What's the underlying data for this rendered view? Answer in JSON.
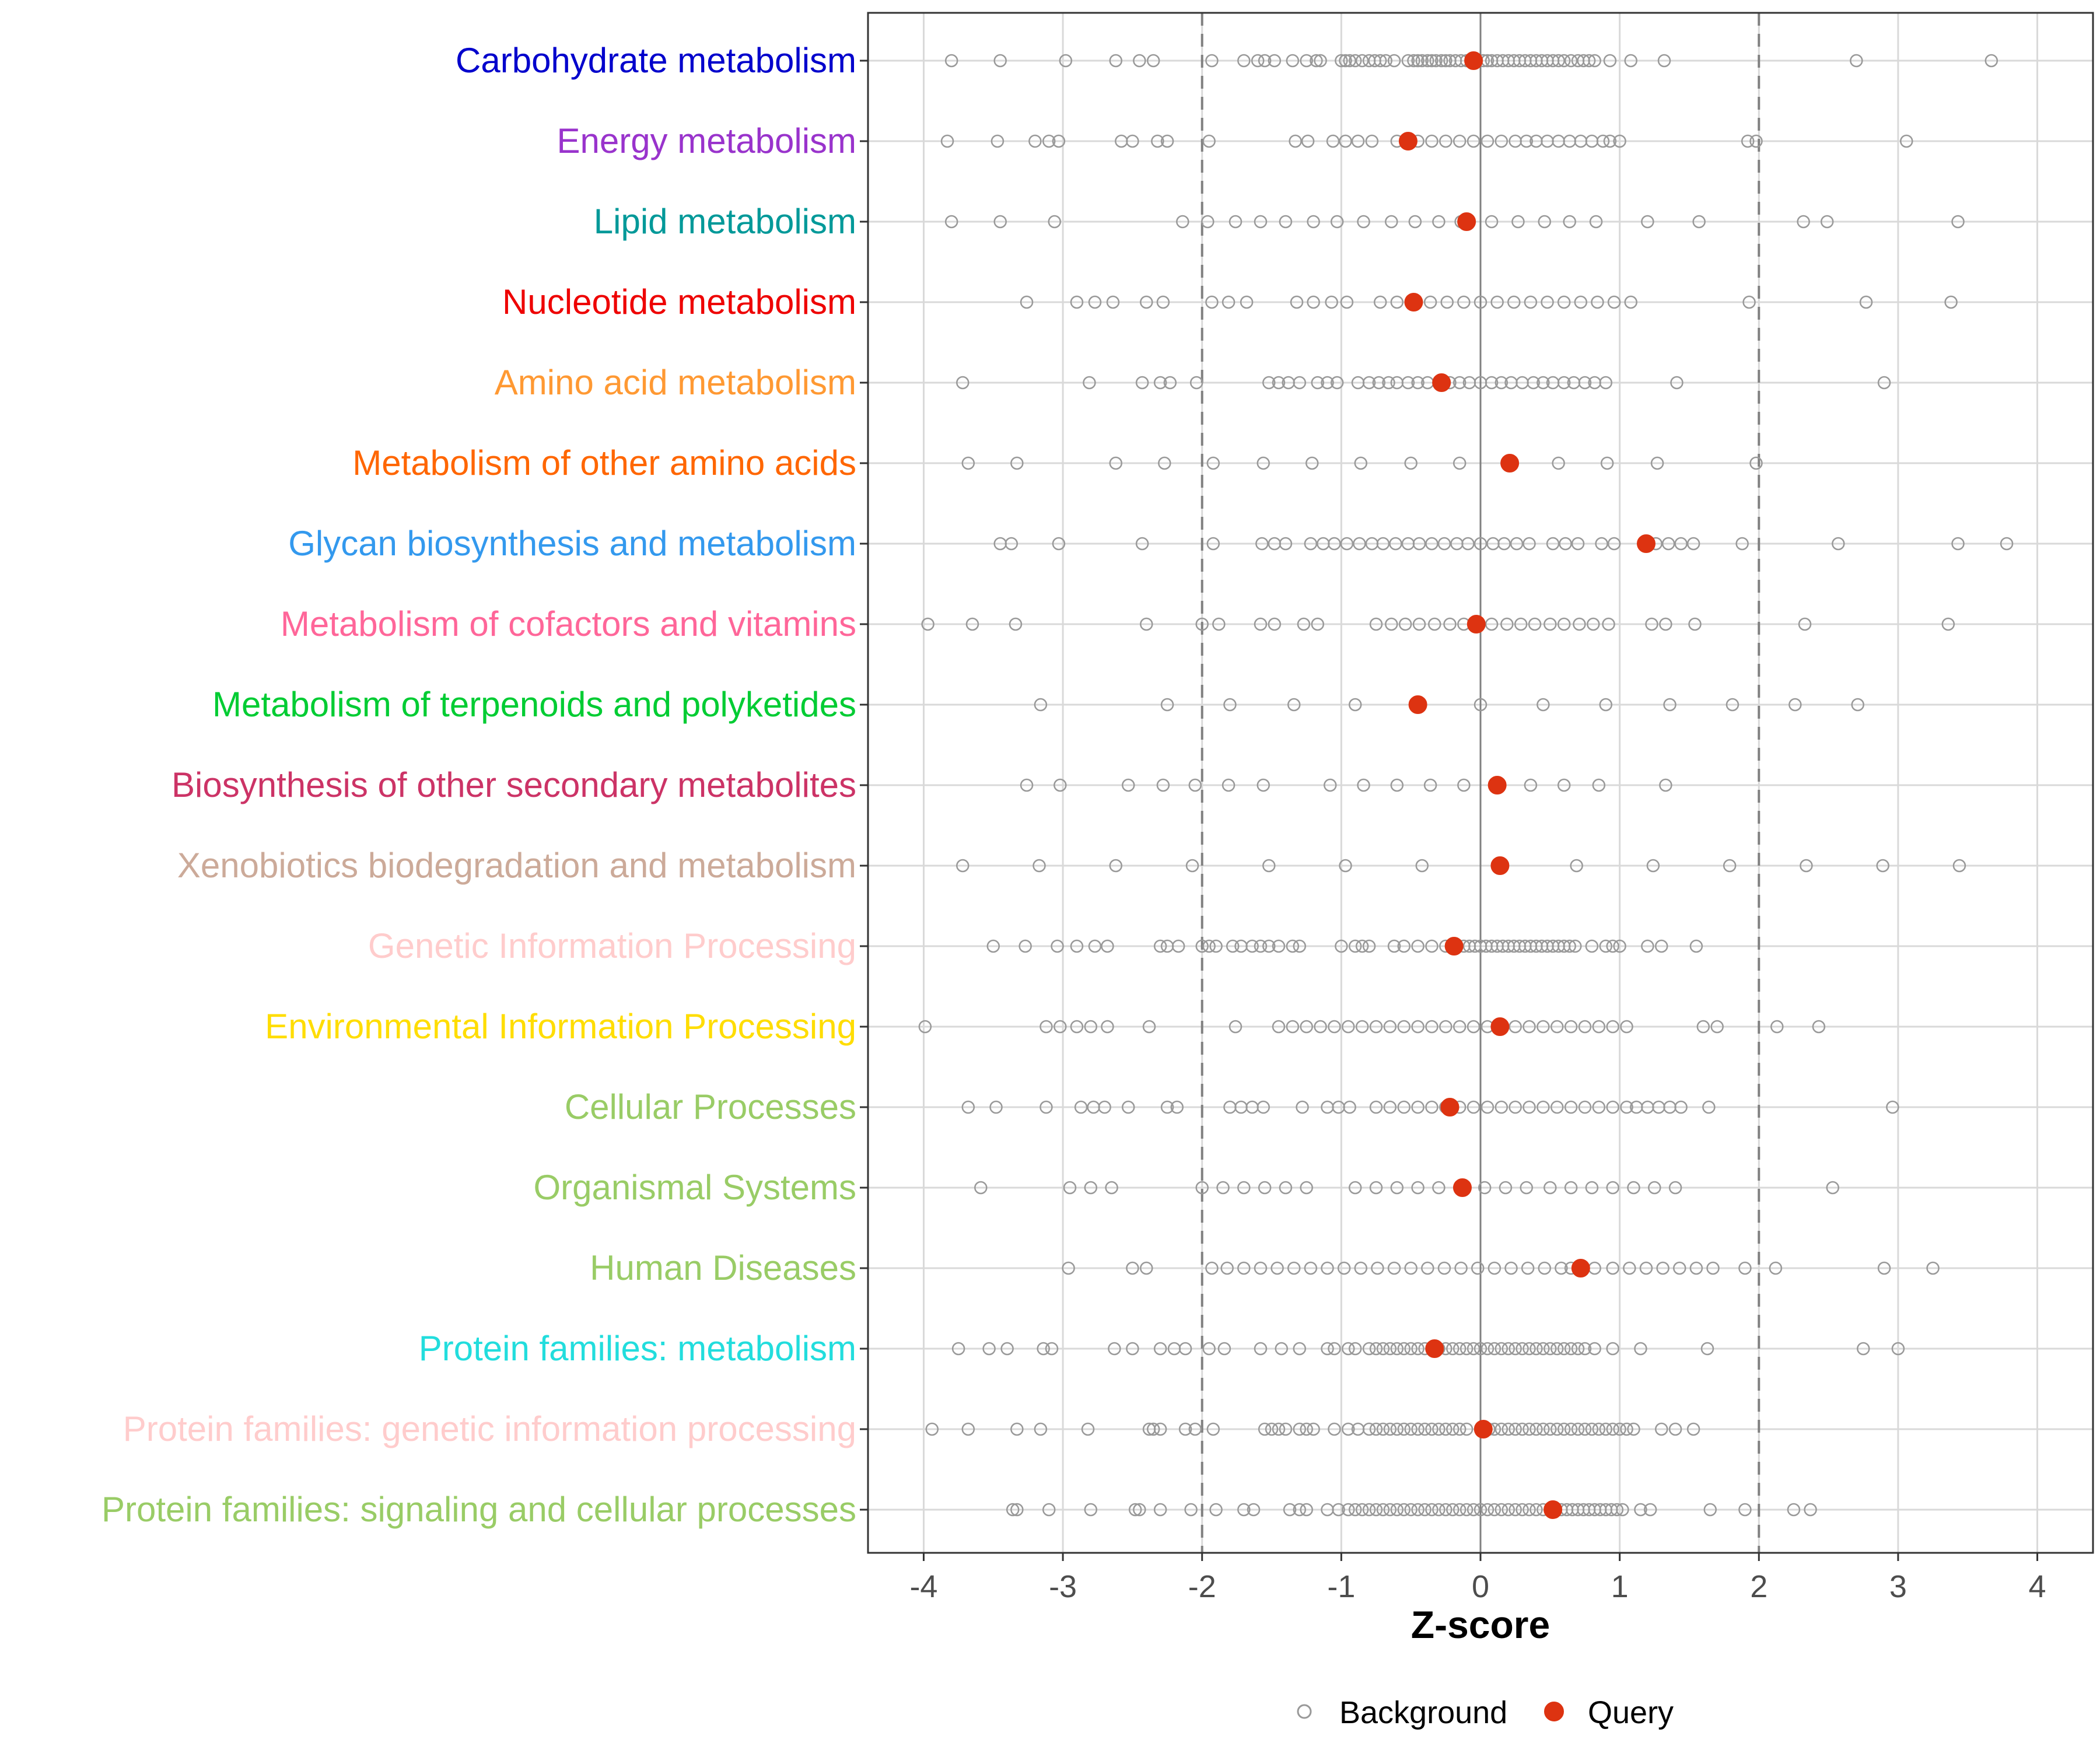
{
  "chart_data": {
    "type": "scatter",
    "xlabel": "Z-score",
    "xlim": [
      -4.4,
      4.4
    ],
    "xticks": [
      -4,
      -3,
      -2,
      -1,
      0,
      1,
      2,
      3,
      4
    ],
    "reference_lines": {
      "solid": [
        0
      ],
      "dashed": [
        -2,
        2
      ]
    },
    "legend": {
      "position": "bottom",
      "items": [
        {
          "label": "Background",
          "marker": "open-circle",
          "color": "#999999"
        },
        {
          "label": "Query",
          "marker": "filled-circle",
          "color": "#dd3311"
        }
      ]
    },
    "colors": {
      "background": "#999999",
      "query": "#dd3311",
      "grid": "#d9d9d9",
      "zero_line": "#808080",
      "dashed_line": "#808080"
    },
    "categories": [
      {
        "name": "Carbohydrate metabolism",
        "color": "#0000cc",
        "query": -0.05,
        "background": [
          -3.8,
          -3.45,
          -2.98,
          -2.62,
          -2.45,
          -2.35,
          -1.93,
          -1.7,
          -1.6,
          -1.55,
          -1.48,
          -1.35,
          -1.25,
          -1.18,
          -1.15,
          -1.0,
          -0.97,
          -0.94,
          -0.9,
          -0.85,
          -0.8,
          -0.76,
          -0.72,
          -0.68,
          -0.62,
          -0.52,
          -0.48,
          -0.45,
          -0.42,
          -0.38,
          -0.35,
          -0.32,
          -0.28,
          -0.25,
          -0.22,
          -0.18,
          -0.14,
          -0.1,
          -0.06,
          0.02,
          0.05,
          0.08,
          0.12,
          0.16,
          0.2,
          0.24,
          0.28,
          0.32,
          0.36,
          0.4,
          0.44,
          0.48,
          0.52,
          0.56,
          0.6,
          0.65,
          0.7,
          0.74,
          0.78,
          0.82,
          0.93,
          1.08,
          1.32,
          2.7,
          3.67
        ]
      },
      {
        "name": "Energy metabolism",
        "color": "#9933cc",
        "query": -0.52,
        "background": [
          -3.83,
          -3.47,
          -3.2,
          -3.1,
          -3.03,
          -2.58,
          -2.5,
          -2.32,
          -2.25,
          -1.95,
          -1.33,
          -1.24,
          -1.06,
          -0.97,
          -0.88,
          -0.78,
          -0.6,
          -0.45,
          -0.35,
          -0.25,
          -0.15,
          -0.05,
          0.05,
          0.15,
          0.25,
          0.33,
          0.4,
          0.48,
          0.56,
          0.64,
          0.72,
          0.8,
          0.88,
          0.93,
          1.0,
          1.92,
          1.98,
          3.06
        ]
      },
      {
        "name": "Lipid metabolism",
        "color": "#009999",
        "query": -0.1,
        "background": [
          -3.8,
          -3.45,
          -3.06,
          -2.14,
          -1.96,
          -1.76,
          -1.58,
          -1.4,
          -1.2,
          -1.03,
          -0.84,
          -0.64,
          -0.47,
          -0.3,
          -0.14,
          0.08,
          0.27,
          0.46,
          0.64,
          0.83,
          1.2,
          1.57,
          2.32,
          2.49,
          3.43
        ]
      },
      {
        "name": "Nucleotide metabolism",
        "color": "#ee0000",
        "query": -0.48,
        "background": [
          -3.26,
          -2.9,
          -2.77,
          -2.64,
          -2.4,
          -2.28,
          -1.93,
          -1.81,
          -1.68,
          -1.32,
          -1.2,
          -1.07,
          -0.96,
          -0.72,
          -0.6,
          -0.36,
          -0.24,
          -0.12,
          0.0,
          0.12,
          0.24,
          0.36,
          0.48,
          0.6,
          0.72,
          0.84,
          0.96,
          1.08,
          1.93,
          2.77,
          3.38
        ]
      },
      {
        "name": "Amino acid metabolism",
        "color": "#ff9933",
        "query": -0.28,
        "background": [
          -3.72,
          -2.81,
          -2.43,
          -2.3,
          -2.23,
          -2.04,
          -1.52,
          -1.45,
          -1.38,
          -1.3,
          -1.17,
          -1.1,
          -1.03,
          -0.88,
          -0.8,
          -0.73,
          -0.66,
          -0.6,
          -0.52,
          -0.45,
          -0.38,
          -0.3,
          -0.22,
          -0.15,
          -0.08,
          0.0,
          0.08,
          0.15,
          0.22,
          0.3,
          0.38,
          0.45,
          0.52,
          0.6,
          0.67,
          0.75,
          0.82,
          0.9,
          1.41,
          2.9
        ]
      },
      {
        "name": "Metabolism of other amino acids",
        "color": "#ff6600",
        "query": 0.21,
        "background": [
          -3.68,
          -3.33,
          -2.62,
          -2.27,
          -1.92,
          -1.56,
          -1.21,
          -0.86,
          -0.5,
          -0.15,
          0.56,
          0.91,
          1.27,
          1.98
        ]
      },
      {
        "name": "Glycan biosynthesis and metabolism",
        "color": "#3399ee",
        "query": 1.19,
        "background": [
          -3.45,
          -3.37,
          -3.03,
          -2.43,
          -1.92,
          -1.57,
          -1.48,
          -1.4,
          -1.22,
          -1.13,
          -1.05,
          -0.96,
          -0.87,
          -0.78,
          -0.7,
          -0.61,
          -0.52,
          -0.44,
          -0.35,
          -0.26,
          -0.17,
          -0.09,
          0.0,
          0.09,
          0.17,
          0.26,
          0.35,
          0.52,
          0.61,
          0.7,
          0.87,
          0.96,
          1.26,
          1.35,
          1.44,
          1.53,
          1.88,
          2.57,
          3.43,
          3.78
        ]
      },
      {
        "name": "Metabolism of cofactors and vitamins",
        "color": "#ff6699",
        "query": -0.03,
        "background": [
          -3.97,
          -3.65,
          -3.34,
          -2.4,
          -2.0,
          -1.88,
          -1.58,
          -1.48,
          -1.27,
          -1.17,
          -0.75,
          -0.64,
          -0.54,
          -0.44,
          -0.33,
          -0.22,
          -0.12,
          0.08,
          0.19,
          0.29,
          0.39,
          0.5,
          0.6,
          0.71,
          0.81,
          0.92,
          1.23,
          1.33,
          1.54,
          2.33,
          3.36
        ]
      },
      {
        "name": "Metabolism of terpenoids and polyketides",
        "color": "#00cc33",
        "query": -0.45,
        "background": [
          -3.16,
          -2.25,
          -1.8,
          -1.34,
          -0.9,
          0.0,
          0.45,
          0.9,
          1.36,
          1.81,
          2.26,
          2.71
        ]
      },
      {
        "name": "Biosynthesis of other secondary metabolites",
        "color": "#cc3366",
        "query": 0.12,
        "background": [
          -3.26,
          -3.02,
          -2.53,
          -2.28,
          -2.05,
          -1.81,
          -1.56,
          -1.08,
          -0.84,
          -0.6,
          -0.36,
          -0.12,
          0.36,
          0.6,
          0.85,
          1.33
        ]
      },
      {
        "name": "Xenobiotics biodegradation and metabolism",
        "color": "#ccaa99",
        "query": 0.14,
        "background": [
          -3.72,
          -3.17,
          -2.62,
          -2.07,
          -1.52,
          -0.97,
          -0.42,
          0.69,
          1.24,
          1.79,
          2.34,
          2.89,
          3.44
        ]
      },
      {
        "name": "Genetic Information Processing",
        "color": "#ffcccc",
        "query": -0.19,
        "background": [
          -3.5,
          -3.27,
          -3.04,
          -2.9,
          -2.77,
          -2.68,
          -2.3,
          -2.25,
          -2.17,
          -2.0,
          -1.95,
          -1.9,
          -1.78,
          -1.72,
          -1.64,
          -1.58,
          -1.52,
          -1.45,
          -1.35,
          -1.3,
          -1.0,
          -0.9,
          -0.85,
          -0.8,
          -0.62,
          -0.55,
          -0.45,
          -0.35,
          -0.25,
          -0.12,
          -0.08,
          -0.04,
          0.0,
          0.04,
          0.08,
          0.12,
          0.16,
          0.2,
          0.24,
          0.28,
          0.32,
          0.36,
          0.4,
          0.44,
          0.48,
          0.52,
          0.56,
          0.6,
          0.64,
          0.68,
          0.8,
          0.9,
          0.95,
          1.0,
          1.2,
          1.3,
          1.55
        ]
      },
      {
        "name": "Environmental Information Processing",
        "color": "#ffdd00",
        "query": 0.14,
        "background": [
          -3.99,
          -3.12,
          -3.02,
          -2.9,
          -2.8,
          -2.68,
          -2.38,
          -1.76,
          -1.45,
          -1.35,
          -1.25,
          -1.15,
          -1.05,
          -0.95,
          -0.85,
          -0.75,
          -0.65,
          -0.55,
          -0.45,
          -0.35,
          -0.25,
          -0.15,
          -0.05,
          0.05,
          0.25,
          0.35,
          0.45,
          0.55,
          0.65,
          0.75,
          0.85,
          0.95,
          1.05,
          1.6,
          1.7,
          2.13,
          2.43
        ]
      },
      {
        "name": "Cellular Processes",
        "color": "#99cc66",
        "query": -0.22,
        "background": [
          -3.68,
          -3.48,
          -3.12,
          -2.87,
          -2.78,
          -2.7,
          -2.53,
          -2.25,
          -2.18,
          -1.8,
          -1.72,
          -1.64,
          -1.56,
          -1.28,
          -1.1,
          -1.02,
          -0.94,
          -0.75,
          -0.65,
          -0.55,
          -0.45,
          -0.35,
          -0.25,
          -0.15,
          -0.05,
          0.05,
          0.15,
          0.25,
          0.35,
          0.45,
          0.55,
          0.65,
          0.75,
          0.85,
          0.95,
          1.05,
          1.12,
          1.2,
          1.28,
          1.36,
          1.44,
          1.64,
          2.96
        ]
      },
      {
        "name": "Organismal Systems",
        "color": "#99cc66",
        "query": -0.13,
        "background": [
          -3.59,
          -2.95,
          -2.8,
          -2.65,
          -2.0,
          -1.85,
          -1.7,
          -1.55,
          -1.4,
          -1.25,
          -0.9,
          -0.75,
          -0.6,
          -0.45,
          -0.3,
          -0.15,
          0.03,
          0.18,
          0.33,
          0.5,
          0.65,
          0.8,
          0.95,
          1.1,
          1.25,
          1.4,
          2.53
        ]
      },
      {
        "name": "Human Diseases",
        "color": "#99cc66",
        "query": 0.72,
        "background": [
          -2.96,
          -2.5,
          -2.4,
          -1.93,
          -1.82,
          -1.7,
          -1.58,
          -1.46,
          -1.34,
          -1.22,
          -1.1,
          -0.98,
          -0.86,
          -0.74,
          -0.62,
          -0.5,
          -0.38,
          -0.26,
          -0.14,
          -0.02,
          0.1,
          0.22,
          0.34,
          0.46,
          0.58,
          0.65,
          0.82,
          0.95,
          1.07,
          1.19,
          1.31,
          1.43,
          1.55,
          1.67,
          1.9,
          2.12,
          2.9,
          3.25
        ]
      },
      {
        "name": "Protein families: metabolism",
        "color": "#22dddd",
        "query": -0.33,
        "background": [
          -3.75,
          -3.53,
          -3.4,
          -3.14,
          -3.08,
          -2.63,
          -2.5,
          -2.3,
          -2.2,
          -2.12,
          -1.95,
          -1.84,
          -1.58,
          -1.43,
          -1.3,
          -1.1,
          -1.05,
          -0.95,
          -0.9,
          -0.8,
          -0.75,
          -0.7,
          -0.65,
          -0.6,
          -0.55,
          -0.5,
          -0.45,
          -0.4,
          -0.35,
          -0.3,
          -0.25,
          -0.2,
          -0.15,
          -0.1,
          -0.05,
          0.0,
          0.05,
          0.1,
          0.15,
          0.2,
          0.25,
          0.3,
          0.35,
          0.4,
          0.45,
          0.5,
          0.55,
          0.6,
          0.65,
          0.7,
          0.75,
          0.82,
          0.95,
          1.15,
          1.63,
          2.75,
          3.0
        ]
      },
      {
        "name": "Protein families: genetic information processing",
        "color": "#ffcccc",
        "query": 0.02,
        "background": [
          -3.94,
          -3.68,
          -3.33,
          -3.16,
          -2.82,
          -2.38,
          -2.35,
          -2.3,
          -2.12,
          -2.05,
          -1.92,
          -1.55,
          -1.5,
          -1.45,
          -1.4,
          -1.3,
          -1.25,
          -1.2,
          -1.05,
          -0.95,
          -0.88,
          -0.8,
          -0.75,
          -0.7,
          -0.65,
          -0.6,
          -0.55,
          -0.5,
          -0.45,
          -0.4,
          -0.35,
          -0.3,
          -0.25,
          -0.2,
          -0.15,
          -0.1,
          0.06,
          0.1,
          0.15,
          0.2,
          0.25,
          0.3,
          0.35,
          0.4,
          0.45,
          0.5,
          0.55,
          0.6,
          0.65,
          0.7,
          0.75,
          0.8,
          0.85,
          0.9,
          0.95,
          1.0,
          1.05,
          1.1,
          1.3,
          1.4,
          1.53
        ]
      },
      {
        "name": "Protein families: signaling and cellular processes",
        "color": "#99cc66",
        "query": 0.52,
        "background": [
          -3.36,
          -3.33,
          -3.1,
          -2.8,
          -2.48,
          -2.45,
          -2.3,
          -2.08,
          -1.9,
          -1.7,
          -1.63,
          -1.37,
          -1.3,
          -1.25,
          -1.1,
          -1.02,
          -0.95,
          -0.9,
          -0.85,
          -0.8,
          -0.75,
          -0.7,
          -0.65,
          -0.6,
          -0.55,
          -0.5,
          -0.45,
          -0.4,
          -0.35,
          -0.3,
          -0.25,
          -0.2,
          -0.15,
          -0.1,
          -0.05,
          0.0,
          0.05,
          0.1,
          0.15,
          0.2,
          0.25,
          0.3,
          0.35,
          0.4,
          0.45,
          0.58,
          0.62,
          0.66,
          0.7,
          0.74,
          0.78,
          0.82,
          0.86,
          0.9,
          0.94,
          0.98,
          1.02,
          1.15,
          1.22,
          1.65,
          1.9,
          2.25,
          2.37
        ]
      }
    ]
  }
}
